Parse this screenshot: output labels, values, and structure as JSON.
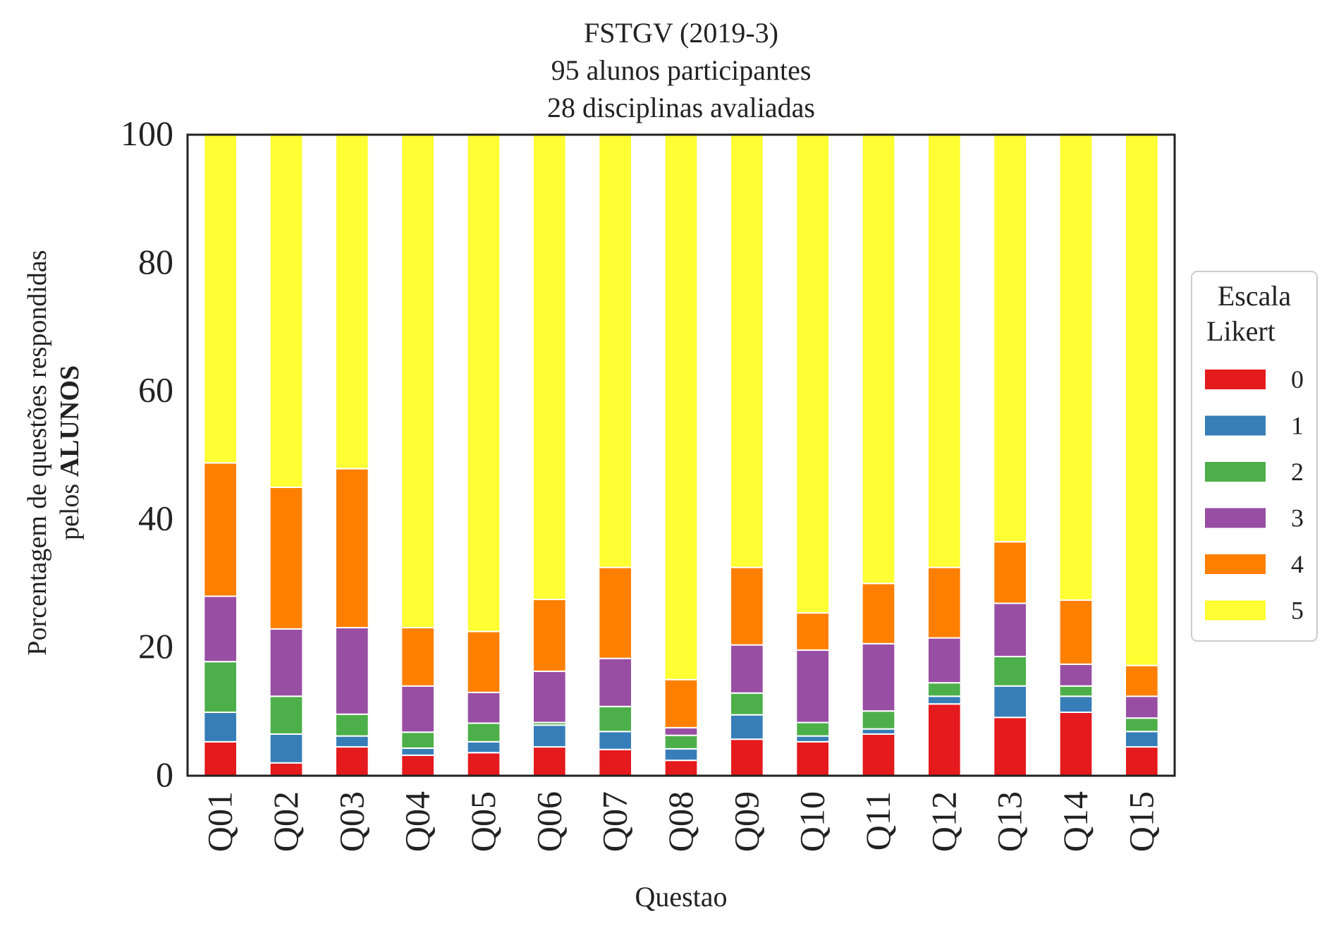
{
  "chart_data": {
    "type": "bar",
    "stacked": true,
    "title": {
      "line1": "FSTGV (2019-3)",
      "line2": "95 alunos participantes",
      "line3": "28 disciplinas avaliadas"
    },
    "xlabel": "Questao",
    "ylabel": {
      "line1": "Porcentagem de questões respondidas",
      "line2_prefix": "pelos",
      "line2_bold": "ALUNOS"
    },
    "ylim": [
      0,
      100
    ],
    "yticks": [
      0,
      20,
      40,
      60,
      80,
      100
    ],
    "grid": false,
    "legend": {
      "title_line1": "Escala",
      "title_line2": "Likert",
      "placement": "center-right, outside plot"
    },
    "categories": [
      "Q01",
      "Q02",
      "Q03",
      "Q04",
      "Q05",
      "Q06",
      "Q07",
      "Q08",
      "Q09",
      "Q10",
      "Q11",
      "Q12",
      "Q13",
      "Q14",
      "Q15"
    ],
    "series": [
      {
        "name": "0",
        "color": "#e41a1c",
        "values": [
          5.3,
          2.0,
          4.5,
          3.2,
          3.6,
          4.5,
          4.1,
          2.4,
          5.7,
          5.3,
          6.5,
          11.2,
          9.1,
          9.9,
          4.5
        ]
      },
      {
        "name": "1",
        "color": "#377eb8",
        "values": [
          4.6,
          4.5,
          1.7,
          1.1,
          1.7,
          3.4,
          2.8,
          1.8,
          3.8,
          0.9,
          0.8,
          1.2,
          4.9,
          2.5,
          2.4
        ]
      },
      {
        "name": "2",
        "color": "#4daf4a",
        "values": [
          7.9,
          5.9,
          3.4,
          2.5,
          2.9,
          0.4,
          3.9,
          2.1,
          3.4,
          2.1,
          2.8,
          2.1,
          4.6,
          1.6,
          2.1
        ]
      },
      {
        "name": "3",
        "color": "#984ea3",
        "values": [
          10.2,
          10.5,
          13.5,
          7.2,
          4.8,
          8.0,
          7.5,
          1.2,
          7.5,
          11.3,
          10.5,
          7.0,
          8.3,
          3.4,
          3.4
        ]
      },
      {
        "name": "4",
        "color": "#ff7f00",
        "values": [
          20.8,
          22.1,
          24.8,
          9.1,
          9.5,
          11.2,
          14.2,
          7.5,
          12.1,
          5.8,
          9.4,
          11.0,
          9.6,
          10.0,
          4.8
        ]
      },
      {
        "name": "5",
        "color": "#ffff33",
        "values": [
          51.2,
          55.0,
          52.1,
          76.9,
          77.5,
          72.5,
          67.5,
          85.0,
          67.5,
          74.6,
          70.0,
          67.5,
          63.5,
          72.6,
          82.8
        ]
      }
    ]
  }
}
